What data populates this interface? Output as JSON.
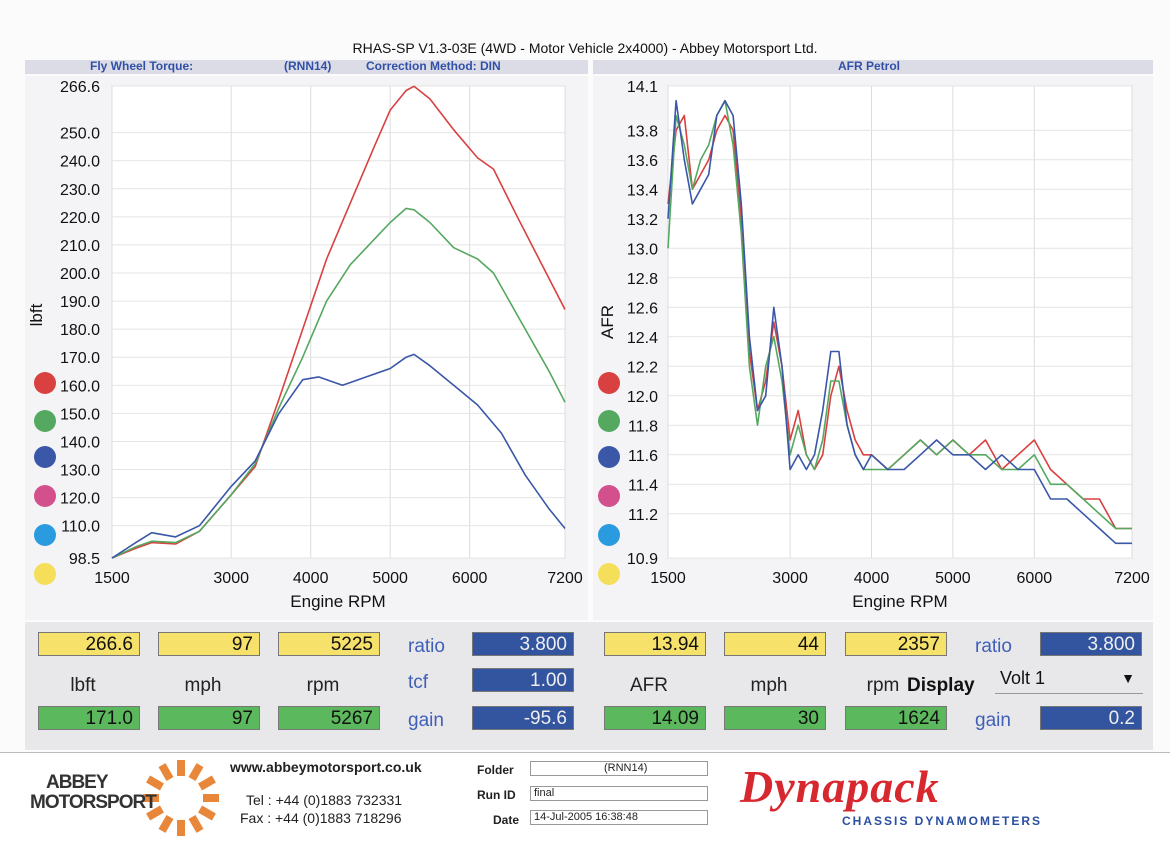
{
  "header": {
    "title": "RHAS-SP V1.3-03E  (4WD - Motor Vehicle 2x4000) - Abbey Motorsport Ltd.",
    "left_label": "Fly Wheel Torque:",
    "left_run": "(RNN14)",
    "left_method": "Correction Method: DIN",
    "right_label": "AFR Petrol"
  },
  "legend_colors": [
    "#d94040",
    "#55a860",
    "#3a57a8",
    "#d2508c",
    "#2b9be0",
    "#f5de5a"
  ],
  "chart_data": [
    {
      "type": "line",
      "ylabel": "lbft",
      "xlabel": "Engine RPM",
      "xlim": [
        1500,
        7200
      ],
      "ylim": [
        98.5,
        266.6
      ],
      "x_ticks": [
        "1500",
        "3000",
        "4000",
        "5000",
        "6000",
        "7200"
      ],
      "y_ticks": [
        "266.6",
        "250.0",
        "240.0",
        "230.0",
        "220.0",
        "210.0",
        "200.0",
        "190.0",
        "180.0",
        "170.0",
        "160.0",
        "150.0",
        "140.0",
        "130.0",
        "120.0",
        "110.0",
        "98.5"
      ],
      "series": [
        {
          "color": "#d94040",
          "x": [
            1500,
            1800,
            2000,
            2300,
            2600,
            3000,
            3300,
            3600,
            3900,
            4200,
            4500,
            4800,
            5000,
            5200,
            5300,
            5500,
            5800,
            6100,
            6300,
            6600,
            7000,
            7200
          ],
          "y": [
            98.5,
            102,
            104,
            103.5,
            108,
            121,
            131,
            155,
            180,
            205,
            225,
            245,
            258,
            265,
            266.5,
            262,
            251,
            241,
            237,
            220,
            198,
            187
          ]
        },
        {
          "color": "#55a860",
          "x": [
            1500,
            1800,
            2000,
            2300,
            2600,
            3000,
            3300,
            3600,
            3900,
            4200,
            4500,
            4800,
            5000,
            5200,
            5300,
            5500,
            5800,
            6100,
            6300,
            6600,
            7000,
            7200
          ],
          "y": [
            98.5,
            102.5,
            104.5,
            104,
            108,
            121,
            132,
            152,
            170,
            190,
            203,
            212,
            218,
            223,
            222.5,
            218,
            209,
            205,
            200,
            185,
            165,
            154
          ]
        },
        {
          "color": "#3a57a8",
          "x": [
            1500,
            1800,
            2000,
            2300,
            2600,
            3000,
            3300,
            3600,
            3900,
            4100,
            4400,
            4700,
            5000,
            5200,
            5300,
            5500,
            5800,
            6100,
            6400,
            6700,
            7000,
            7200
          ],
          "y": [
            98.5,
            104,
            107.5,
            106,
            110,
            124,
            133,
            150,
            162,
            163,
            160,
            163,
            166,
            170,
            171,
            167,
            160,
            153,
            143,
            128,
            116,
            109
          ]
        }
      ]
    },
    {
      "type": "line",
      "ylabel": "AFR",
      "xlabel": "Engine RPM",
      "xlim": [
        1500,
        7200
      ],
      "ylim": [
        10.9,
        14.1
      ],
      "x_ticks": [
        "1500",
        "3000",
        "4000",
        "5000",
        "6000",
        "7200"
      ],
      "y_ticks": [
        "14.1",
        "13.8",
        "13.6",
        "13.4",
        "13.2",
        "13.0",
        "12.8",
        "12.6",
        "12.4",
        "12.2",
        "12.0",
        "11.8",
        "11.6",
        "11.4",
        "11.2",
        "10.9"
      ],
      "series": [
        {
          "color": "#d94040",
          "x": [
            1500,
            1600,
            1700,
            1800,
            1900,
            2000,
            2100,
            2200,
            2300,
            2400,
            2500,
            2600,
            2700,
            2800,
            2900,
            3000,
            3100,
            3200,
            3300,
            3400,
            3500,
            3600,
            3700,
            3800,
            3900,
            4000,
            4200,
            4400,
            4600,
            4800,
            5000,
            5200,
            5400,
            5600,
            5800,
            6000,
            6200,
            6400,
            6600,
            6800,
            7000,
            7200
          ],
          "y": [
            13.3,
            13.8,
            13.9,
            13.4,
            13.5,
            13.6,
            13.8,
            13.9,
            13.8,
            13.2,
            12.3,
            11.9,
            12.1,
            12.5,
            12.2,
            11.7,
            11.9,
            11.6,
            11.5,
            11.6,
            12.0,
            12.2,
            11.9,
            11.7,
            11.6,
            11.6,
            11.5,
            11.6,
            11.7,
            11.6,
            11.7,
            11.6,
            11.7,
            11.5,
            11.6,
            11.7,
            11.5,
            11.4,
            11.3,
            11.3,
            11.1,
            11.1
          ]
        },
        {
          "color": "#55a860",
          "x": [
            1500,
            1600,
            1700,
            1800,
            1900,
            2000,
            2100,
            2200,
            2300,
            2400,
            2500,
            2600,
            2700,
            2800,
            2900,
            3000,
            3100,
            3200,
            3300,
            3400,
            3500,
            3600,
            3700,
            3800,
            3900,
            4000,
            4200,
            4400,
            4600,
            4800,
            5000,
            5200,
            5400,
            5600,
            5800,
            6000,
            6200,
            6400,
            6600,
            6800,
            7000,
            7200
          ],
          "y": [
            13.0,
            13.9,
            13.7,
            13.4,
            13.6,
            13.7,
            13.9,
            14.0,
            13.7,
            13.1,
            12.2,
            11.8,
            12.2,
            12.4,
            12.1,
            11.6,
            11.8,
            11.6,
            11.5,
            11.7,
            12.1,
            12.1,
            11.8,
            11.6,
            11.5,
            11.5,
            11.5,
            11.6,
            11.7,
            11.6,
            11.7,
            11.6,
            11.6,
            11.5,
            11.5,
            11.6,
            11.4,
            11.4,
            11.3,
            11.2,
            11.1,
            11.1
          ]
        },
        {
          "color": "#3a57a8",
          "x": [
            1500,
            1600,
            1700,
            1800,
            1900,
            2000,
            2100,
            2200,
            2300,
            2400,
            2500,
            2600,
            2700,
            2800,
            2900,
            3000,
            3100,
            3200,
            3300,
            3400,
            3500,
            3600,
            3700,
            3800,
            3900,
            4000,
            4200,
            4400,
            4600,
            4800,
            5000,
            5200,
            5400,
            5600,
            5800,
            6000,
            6200,
            6400,
            6600,
            6800,
            7000,
            7200
          ],
          "y": [
            13.2,
            14.0,
            13.6,
            13.3,
            13.4,
            13.5,
            13.9,
            14.0,
            13.9,
            13.3,
            12.4,
            11.9,
            12.0,
            12.6,
            12.2,
            11.5,
            11.6,
            11.5,
            11.6,
            11.9,
            12.3,
            12.3,
            11.8,
            11.6,
            11.5,
            11.6,
            11.5,
            11.5,
            11.6,
            11.7,
            11.6,
            11.6,
            11.5,
            11.6,
            11.5,
            11.5,
            11.3,
            11.3,
            11.2,
            11.1,
            11.0,
            11.0
          ]
        }
      ]
    }
  ],
  "readouts_left": {
    "row1": [
      "266.6",
      "97",
      "5225"
    ],
    "labels": [
      "lbft",
      "mph",
      "rpm"
    ],
    "row2": [
      "171.0",
      "97",
      "5267"
    ],
    "ratio_label": "ratio",
    "ratio_value": "3.800",
    "tcf_label": "tcf",
    "tcf_value": "1.00",
    "gain_label": "gain",
    "gain_value": "-95.6"
  },
  "readouts_right": {
    "row1": [
      "13.94",
      "44",
      "2357"
    ],
    "labels": [
      "AFR",
      "mph",
      "rpm"
    ],
    "display_label": "Display",
    "display_select": "Volt 1",
    "row2": [
      "14.09",
      "30",
      "1624"
    ],
    "ratio_label": "ratio",
    "ratio_value": "3.800",
    "gain_label": "gain",
    "gain_value": "0.2"
  },
  "footer": {
    "logo_line1": "ABBEY",
    "logo_line2": "MOTORSPORT",
    "website": "www.abbeymotorsport.co.uk",
    "tel": "Tel : +44 (0)1883 732331",
    "fax": "Fax : +44 (0)1883 718296",
    "folder_label": "Folder",
    "folder_value": "(RNN14)",
    "runid_label": "Run ID",
    "runid_value": "final",
    "date_label": "Date",
    "date_value": "14-Jul-2005  16:38:48",
    "brand": "Dynapack",
    "brand_sub": "CHASSIS   DYNAMOMETERS"
  }
}
